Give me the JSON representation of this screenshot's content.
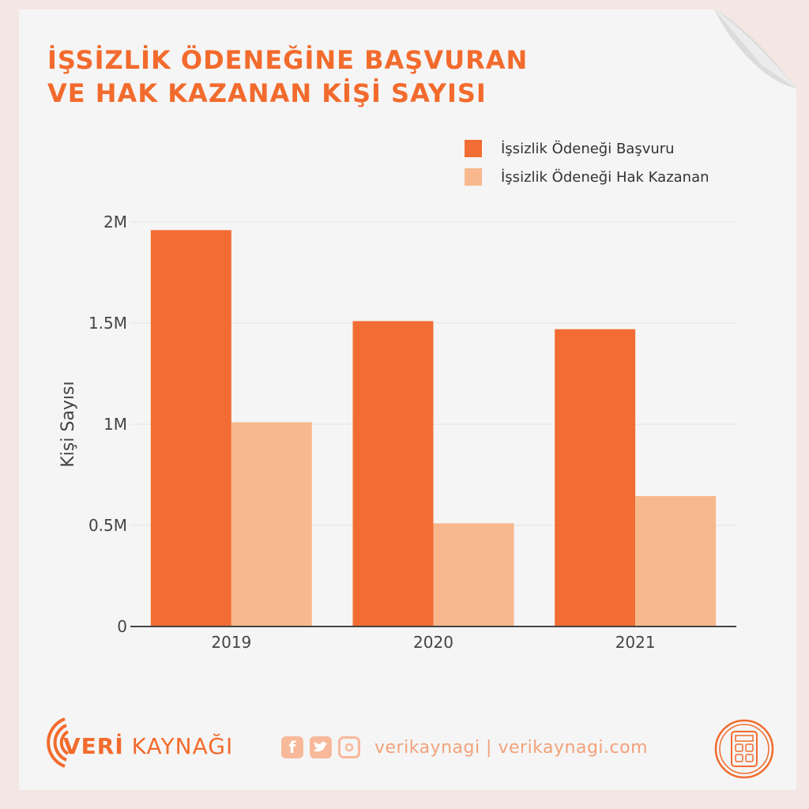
{
  "header": {
    "title_line1": "İŞSİZLİK ÖDENEĞİNE BAŞVURAN",
    "title_line2": "VE HAK KAZANAN KİŞİ SAYISI"
  },
  "footer": {
    "brand_veri": "VERİ",
    "brand_kaynagi": " KAYNAĞI",
    "social_text": "verikaynagi | verikaynagi.com",
    "icons": [
      "facebook-icon",
      "twitter-icon",
      "instagram-icon",
      "calculator-icon"
    ]
  },
  "colors": {
    "accent": "#f26b2d",
    "series1": "#f26d33",
    "series2": "#f8b88d"
  },
  "chart_data": {
    "type": "bar",
    "categories": [
      "2019",
      "2020",
      "2021"
    ],
    "series": [
      {
        "name": "İşsizlik Ödeneği Başvuru",
        "values": [
          1960000,
          1510000,
          1470000
        ]
      },
      {
        "name": "İşsizlik Ödeneği Hak Kazanan",
        "values": [
          1010000,
          510000,
          645000
        ]
      }
    ],
    "ylabel": "Kişi Sayısı",
    "ylim": [
      0,
      2000000
    ],
    "yticks": [
      0,
      500000,
      1000000,
      1500000,
      2000000
    ],
    "ytick_labels": [
      "0",
      "0.5M",
      "1M",
      "1.5M",
      "2M"
    ],
    "grid": true,
    "legend": "top-right"
  }
}
